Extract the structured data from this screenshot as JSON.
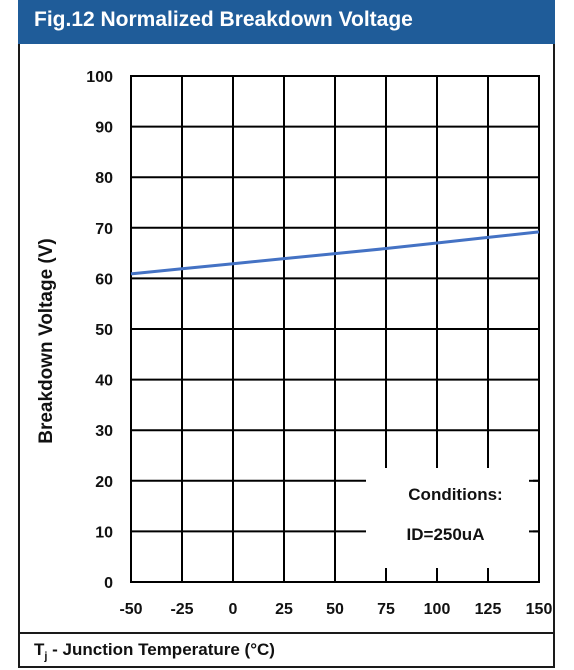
{
  "header": {
    "title": "Fig.12 Normalized Breakdown Voltage"
  },
  "footer": {
    "tj_letter": "T",
    "tj_sub": "j",
    "tj_rest": " - Junction Temperature (°C)"
  },
  "colors": {
    "header_bg": "#1f5c99",
    "line": "#4472c4",
    "grid": "#000000"
  },
  "chart_data": {
    "type": "line",
    "title": "Fig.12 Normalized Breakdown Voltage",
    "xlabel": "Tj - Junction Temperature (°C)",
    "ylabel": "Breakdown Voltage (V)",
    "x_ticks": [
      -50,
      -25,
      0,
      25,
      50,
      75,
      100,
      125,
      150
    ],
    "y_ticks": [
      0,
      10,
      20,
      30,
      40,
      50,
      60,
      70,
      80,
      90,
      100
    ],
    "xlim": [
      -50,
      150
    ],
    "ylim": [
      0,
      100
    ],
    "grid": true,
    "series": [
      {
        "name": "",
        "x": [
          -50,
          -25,
          0,
          25,
          50,
          75,
          100,
          125,
          150
        ],
        "y": [
          60.9,
          61.9,
          62.9,
          63.9,
          64.9,
          65.9,
          67.0,
          68.1,
          69.2
        ]
      }
    ],
    "annotation": {
      "line1": "Conditions:",
      "line2": "ID=250uA"
    }
  }
}
